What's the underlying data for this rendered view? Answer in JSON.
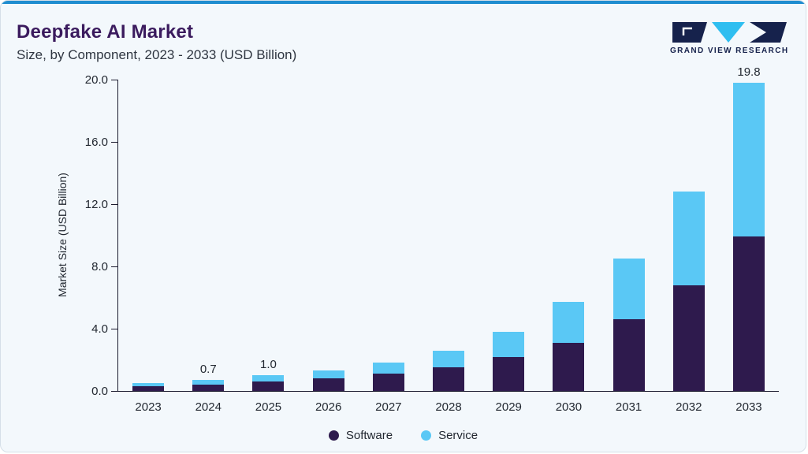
{
  "chart_data": {
    "type": "bar",
    "stacked": true,
    "title": "Deepfake AI Market",
    "subtitle": "Size, by Component, 2023 - 2033 (USD Billion)",
    "ylabel": "Market Size (USD Billion)",
    "xlabel": "",
    "ylim": [
      0,
      20
    ],
    "yticks": [
      "0.0",
      "4.0",
      "8.0",
      "12.0",
      "16.0",
      "20.0"
    ],
    "grid": false,
    "legend_position": "bottom",
    "categories": [
      "2023",
      "2024",
      "2025",
      "2026",
      "2027",
      "2028",
      "2029",
      "2030",
      "2031",
      "2032",
      "2033"
    ],
    "series": [
      {
        "name": "Software",
        "color": "#2e1a4d",
        "values": [
          0.3,
          0.4,
          0.6,
          0.8,
          1.1,
          1.5,
          2.2,
          3.1,
          4.6,
          6.8,
          9.9
        ]
      },
      {
        "name": "Service",
        "color": "#5ac8f5",
        "values": [
          0.2,
          0.3,
          0.4,
          0.5,
          0.7,
          1.1,
          1.6,
          2.6,
          3.9,
          6.0,
          9.9
        ]
      }
    ],
    "bar_labels": [
      "",
      "0.7",
      "1.0",
      "",
      "",
      "",
      "",
      "",
      "",
      "",
      "19.8"
    ]
  },
  "logo": {
    "text": "GRAND VIEW RESEARCH"
  },
  "colors": {
    "accent_top": "#1f8dd0",
    "card_background": "#f3f8fc",
    "card_border": "#d5dfe8",
    "title": "#3b1b5e",
    "subtitle": "#2e3540",
    "axis": "#1a1a2e",
    "text": "#222831",
    "logo_navy": "#16224c",
    "logo_cyan": "#2fbef0"
  }
}
